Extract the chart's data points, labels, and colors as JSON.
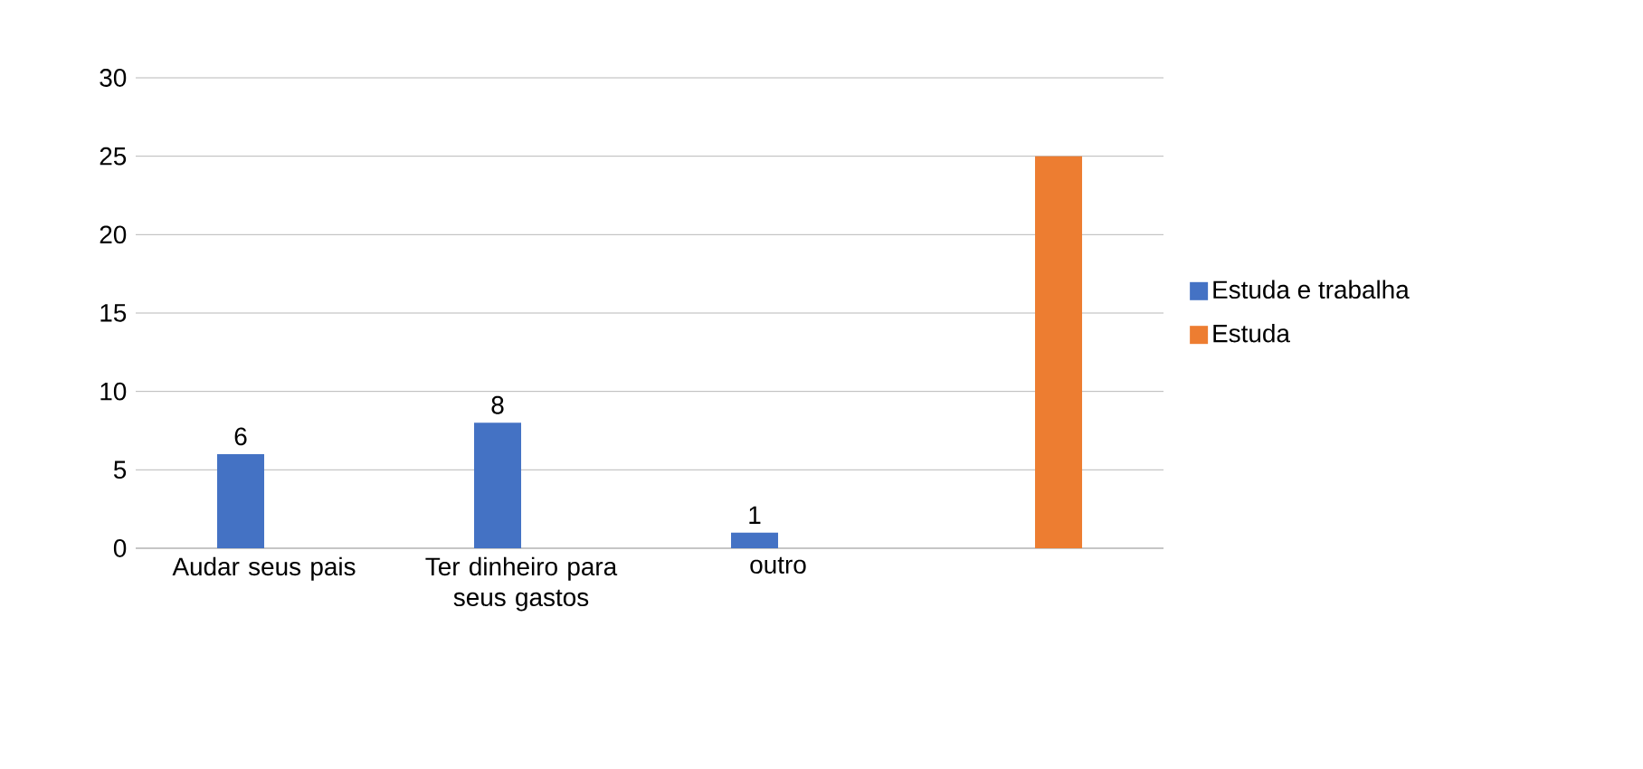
{
  "chart_data": {
    "type": "bar",
    "categories": [
      "Audar seus pais",
      "Ter dinheiro para seus gastos",
      "outro",
      null
    ],
    "series": [
      {
        "name": "Estuda e trabalha",
        "color": "#4472c4",
        "values": [
          6,
          8,
          1,
          null
        ],
        "value_labels": [
          "6",
          "8",
          "1",
          null
        ]
      },
      {
        "name": "Estuda",
        "color": "#ed7d31",
        "values": [
          null,
          null,
          null,
          25
        ]
      }
    ],
    "ylim": [
      0,
      30
    ],
    "yticks": [
      0,
      5,
      10,
      15,
      20,
      25,
      30
    ],
    "grid": "y",
    "legend": "right"
  }
}
